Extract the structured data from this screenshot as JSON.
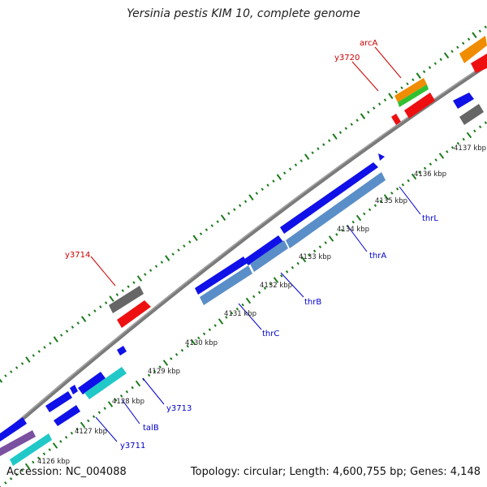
{
  "title": "Yersinia pestis KIM 10, complete genome",
  "accession_label": "Accession: NC_004088",
  "stats_label": "Topology: circular; Length: 4,600,755 bp; Genes: 4,148",
  "colors": {
    "backbone": "#8a8a8a",
    "tick": "#1a7a1a",
    "fwd_label": "#cc0000",
    "rev_label": "#0000cc",
    "blue": "#1010e8",
    "steelblue": "#5a8ec8",
    "cyan": "#20c8c8",
    "red": "#ee1010",
    "gray": "#666666",
    "orange": "#f08c00",
    "green": "#30c030",
    "purple": "#7a50a0"
  },
  "kbp_labels": [
    "4126 kbp",
    "4127 kbp",
    "4128 kbp",
    "4129 kbp",
    "4130 kbp",
    "4131 kbp",
    "4132 kbp",
    "4133 kbp",
    "4134 kbp",
    "4135 kbp",
    "4136 kbp",
    "4137 kbp"
  ],
  "gene_labels": [
    {
      "name": "arcA",
      "strand": "fwd"
    },
    {
      "name": "y3720",
      "strand": "fwd"
    },
    {
      "name": "y3714",
      "strand": "fwd"
    },
    {
      "name": "thrL",
      "strand": "rev"
    },
    {
      "name": "thrA",
      "strand": "rev"
    },
    {
      "name": "thrB",
      "strand": "rev"
    },
    {
      "name": "thrC",
      "strand": "rev"
    },
    {
      "name": "y3713",
      "strand": "rev"
    },
    {
      "name": "talB",
      "strand": "rev"
    },
    {
      "name": "y3711",
      "strand": "rev"
    }
  ]
}
